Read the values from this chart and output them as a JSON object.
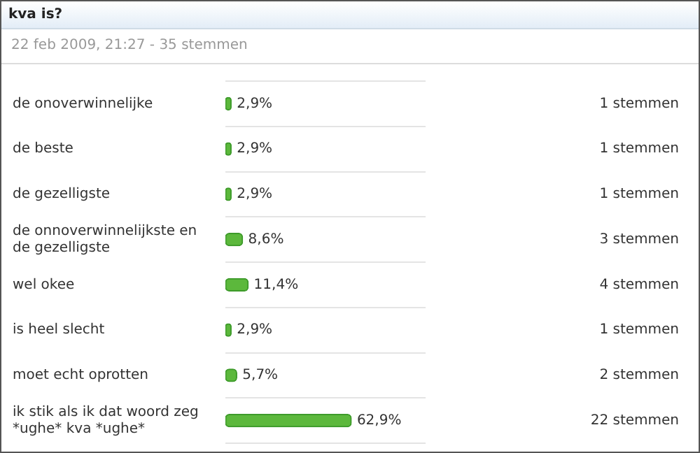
{
  "chart_data": {
    "type": "bar",
    "orientation": "horizontal",
    "title": "kva is?",
    "subtitle": "22 feb 2009, 21:27 - 35 stemmen",
    "categories": [
      "de onoverwinnelijke",
      "de beste",
      "de gezelligste",
      "de onnoverwinnelijkste en de gezelligste",
      "wel okee",
      "is heel slecht",
      "moet echt oprotten",
      "ik stik als ik dat woord zeg *ughe* kva *ughe*"
    ],
    "values": [
      2.9,
      2.9,
      2.9,
      8.6,
      11.4,
      2.9,
      5.7,
      62.9
    ],
    "value_labels": [
      "2,9%",
      "2,9%",
      "2,9%",
      "8,6%",
      "11,4%",
      "2,9%",
      "5,7%",
      "62,9%"
    ],
    "color": "#5cb83c",
    "xlim": [
      0,
      100
    ],
    "tick_labels": "y",
    "grid": "y",
    "annotations": [
      "1 stemmen",
      "1 stemmen",
      "1 stemmen",
      "3 stemmen",
      "4 stemmen",
      "1 stemmen",
      "2 stemmen",
      "22 stemmen"
    ]
  }
}
